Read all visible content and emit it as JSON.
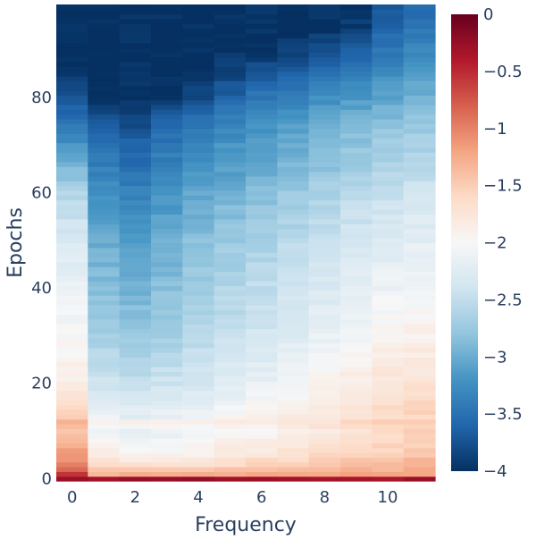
{
  "chart_data": {
    "type": "heatmap",
    "xlabel": "Frequency",
    "ylabel": "Epochs",
    "x": [
      0,
      1,
      2,
      3,
      4,
      5,
      6,
      7,
      8,
      9,
      10,
      11
    ],
    "y_range": [
      0,
      99
    ],
    "xlim": [
      -0.5,
      11.5
    ],
    "ylim": [
      -0.5,
      99.5
    ],
    "x_ticks": [
      0,
      2,
      4,
      6,
      8,
      10
    ],
    "y_ticks": [
      0,
      20,
      40,
      60,
      80
    ],
    "colorscale": "RdBu",
    "color_range": [
      -4,
      0
    ],
    "colorbar_ticks": [
      {
        "value": 0,
        "label": "0"
      },
      {
        "value": -0.5,
        "label": "−0.5"
      },
      {
        "value": -1,
        "label": "−1"
      },
      {
        "value": -1.5,
        "label": "−1.5"
      },
      {
        "value": -2,
        "label": "−2"
      },
      {
        "value": -2.5,
        "label": "−2.5"
      },
      {
        "value": -3,
        "label": "−3"
      },
      {
        "value": -3.5,
        "label": "−3.5"
      },
      {
        "value": -4,
        "label": "−4"
      }
    ],
    "colorbar_colors": [
      "#053061",
      "#2166ac",
      "#4393c3",
      "#92c5de",
      "#d1e5f0",
      "#f7f7f7",
      "#fddbc7",
      "#f4a582",
      "#d6604d",
      "#b2182b",
      "#67001f"
    ],
    "value_profiles": {
      "epochs": [
        0,
        1,
        3,
        6,
        10,
        12,
        13,
        16,
        20,
        30,
        40,
        50,
        60,
        65,
        70,
        75,
        80,
        85,
        90,
        95,
        99
      ],
      "columns": [
        {
          "x": 0,
          "values": [
            -0.2,
            -0.6,
            -1.0,
            -1.2,
            -1.4,
            -1.25,
            -1.5,
            -1.7,
            -1.85,
            -2.0,
            -2.15,
            -2.3,
            -2.6,
            -2.9,
            -3.2,
            -3.5,
            -3.7,
            -4.0,
            -4.0,
            -4.0,
            -4.0
          ]
        },
        {
          "x": 1,
          "values": [
            -0.3,
            -1.3,
            -1.6,
            -1.9,
            -2.1,
            -1.9,
            -2.1,
            -2.25,
            -2.4,
            -2.65,
            -2.85,
            -3.0,
            -3.2,
            -3.35,
            -3.5,
            -3.7,
            -4.0,
            -4.0,
            -4.0,
            -4.0,
            -4.0
          ]
        },
        {
          "x": 2,
          "values": [
            -0.3,
            -1.3,
            -1.7,
            -2.0,
            -2.2,
            -1.9,
            -2.2,
            -2.3,
            -2.5,
            -2.75,
            -2.95,
            -3.15,
            -3.35,
            -3.5,
            -3.6,
            -3.8,
            -4.0,
            -4.0,
            -4.0,
            -4.0,
            -4.0
          ]
        },
        {
          "x": 3,
          "values": [
            -0.3,
            -1.3,
            -1.7,
            -2.0,
            -2.15,
            -1.9,
            -2.15,
            -2.25,
            -2.4,
            -2.7,
            -2.85,
            -3.0,
            -3.2,
            -3.35,
            -3.45,
            -3.6,
            -4.0,
            -4.0,
            -4.0,
            -4.0,
            -4.0
          ]
        },
        {
          "x": 4,
          "values": [
            -0.3,
            -1.3,
            -1.65,
            -1.95,
            -2.1,
            -1.9,
            -2.1,
            -2.2,
            -2.35,
            -2.55,
            -2.7,
            -2.85,
            -3.05,
            -3.2,
            -3.3,
            -3.45,
            -3.8,
            -4.0,
            -4.0,
            -4.0,
            -4.0
          ]
        },
        {
          "x": 5,
          "values": [
            -0.3,
            -1.3,
            -1.6,
            -1.85,
            -2.0,
            -1.85,
            -2.0,
            -2.1,
            -2.25,
            -2.45,
            -2.6,
            -2.75,
            -2.95,
            -3.1,
            -3.2,
            -3.35,
            -3.6,
            -3.85,
            -4.0,
            -4.0,
            -4.0
          ]
        },
        {
          "x": 6,
          "values": [
            -0.3,
            -1.3,
            -1.55,
            -1.8,
            -1.95,
            -1.8,
            -1.95,
            -2.0,
            -2.15,
            -2.35,
            -2.5,
            -2.65,
            -2.85,
            -3.0,
            -3.1,
            -3.25,
            -3.45,
            -3.7,
            -4.0,
            -4.0,
            -4.0
          ]
        },
        {
          "x": 7,
          "values": [
            -0.3,
            -1.3,
            -1.5,
            -1.75,
            -1.85,
            -1.75,
            -1.85,
            -1.95,
            -2.05,
            -2.25,
            -2.4,
            -2.55,
            -2.75,
            -2.9,
            -3.0,
            -3.15,
            -3.35,
            -3.6,
            -3.9,
            -4.0,
            -4.0
          ]
        },
        {
          "x": 8,
          "values": [
            -0.3,
            -1.3,
            -1.45,
            -1.7,
            -1.8,
            -1.7,
            -1.8,
            -1.85,
            -1.95,
            -2.15,
            -2.3,
            -2.45,
            -2.65,
            -2.8,
            -2.9,
            -3.05,
            -3.25,
            -3.5,
            -3.75,
            -4.0,
            -4.0
          ]
        },
        {
          "x": 9,
          "values": [
            -0.3,
            -1.25,
            -1.4,
            -1.6,
            -1.7,
            -1.6,
            -1.7,
            -1.75,
            -1.85,
            -2.05,
            -2.2,
            -2.35,
            -2.55,
            -2.7,
            -2.8,
            -2.95,
            -3.15,
            -3.4,
            -3.65,
            -3.9,
            -4.0
          ]
        },
        {
          "x": 10,
          "values": [
            -0.3,
            -1.25,
            -1.35,
            -1.55,
            -1.6,
            -1.5,
            -1.6,
            -1.65,
            -1.75,
            -1.95,
            -2.1,
            -2.25,
            -2.45,
            -2.6,
            -2.7,
            -2.85,
            -3.05,
            -3.25,
            -3.45,
            -3.6,
            -3.75
          ]
        },
        {
          "x": 11,
          "values": [
            -0.3,
            -1.25,
            -1.3,
            -1.5,
            -1.55,
            -1.45,
            -1.55,
            -1.6,
            -1.7,
            -1.9,
            -2.05,
            -2.2,
            -2.4,
            -2.55,
            -2.65,
            -2.8,
            -2.95,
            -3.1,
            -3.3,
            -3.45,
            -3.6
          ]
        }
      ]
    }
  }
}
